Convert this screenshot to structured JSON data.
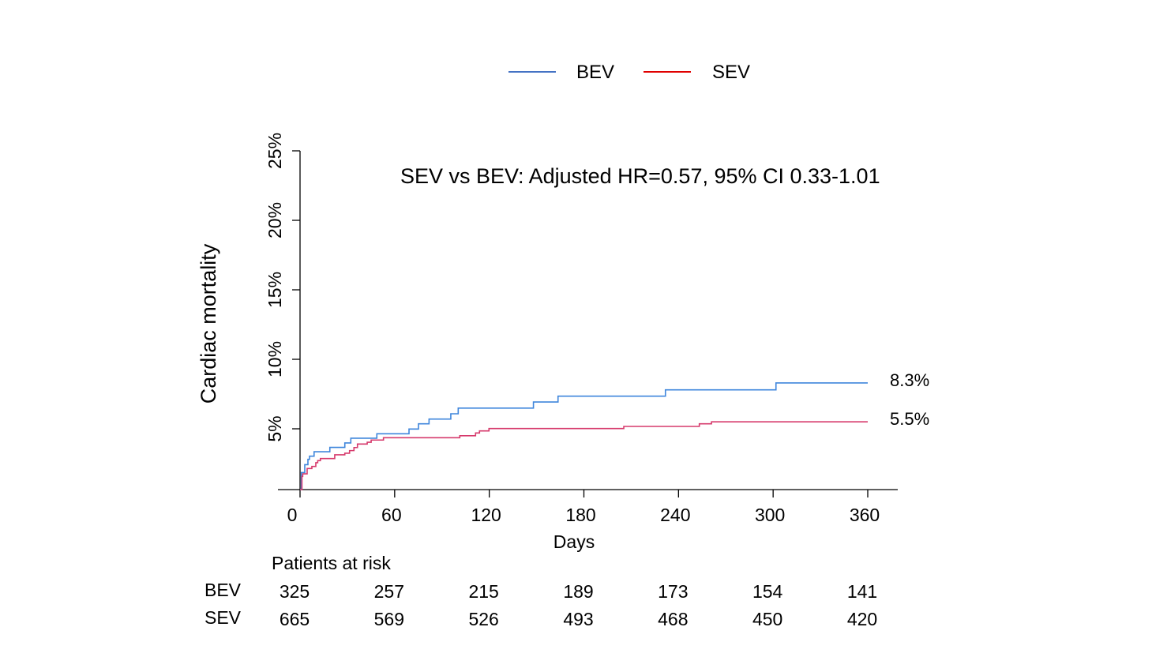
{
  "chart_data": {
    "type": "line",
    "step": true,
    "title": "",
    "annotation": "SEV vs BEV: Adjusted HR=0.57, 95% CI 0.33-1.01",
    "xlabel": "Days",
    "ylabel": "Cardiac mortality",
    "xlim": [
      0,
      360
    ],
    "ylim": [
      0.6,
      25
    ],
    "x_ticks": [
      0,
      60,
      120,
      180,
      240,
      300,
      360
    ],
    "y_ticks": [
      5,
      10,
      15,
      20,
      25
    ],
    "y_tick_labels": [
      "5%",
      "10%",
      "15%",
      "20%",
      "25%"
    ],
    "legend_placement": "top-center",
    "series": [
      {
        "name": "BEV",
        "color": "#3f86dc",
        "legend_color": "#4472c4",
        "end_label": "8.3%",
        "x": [
          0,
          0.8,
          3,
          5,
          6,
          8.9,
          18.9,
          28.4,
          32.2,
          48.7,
          69.1,
          75.1,
          81.8,
          95.6,
          100.3,
          148,
          163.6,
          231.7,
          301.8,
          360
        ],
        "y": [
          0.6,
          1.85,
          2.42,
          2.8,
          3.03,
          3.35,
          3.66,
          3.98,
          4.32,
          4.64,
          4.98,
          5.36,
          5.7,
          6.08,
          6.49,
          6.93,
          7.35,
          7.8,
          8.3,
          8.3
        ]
      },
      {
        "name": "SEV",
        "color": "#d63a6c",
        "legend_color": "#e00000",
        "end_label": "5.5%",
        "x": [
          0,
          1.2,
          1.7,
          4.5,
          7.5,
          10,
          11.2,
          12.9,
          22,
          28.4,
          31.4,
          34.2,
          36.4,
          42.6,
          45.1,
          52.9,
          101.3,
          111.3,
          113.8,
          119.8,
          205.3,
          253.2,
          260.9,
          360
        ],
        "y": [
          0.6,
          1.57,
          1.76,
          2.14,
          2.29,
          2.56,
          2.71,
          2.86,
          3.13,
          3.24,
          3.43,
          3.65,
          3.9,
          4.03,
          4.19,
          4.36,
          4.5,
          4.7,
          4.85,
          5.02,
          5.17,
          5.36,
          5.5,
          5.5
        ]
      }
    ],
    "risk_table": {
      "title": "Patients at risk",
      "rows": [
        {
          "label": "BEV",
          "values": [
            "325",
            "257",
            "215",
            "189",
            "173",
            "154",
            "141"
          ]
        },
        {
          "label": "SEV",
          "values": [
            "665",
            "569",
            "526",
            "493",
            "468",
            "450",
            "420"
          ]
        }
      ]
    }
  }
}
